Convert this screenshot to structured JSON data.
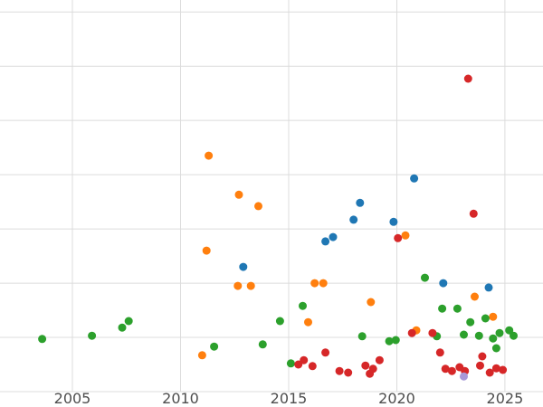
{
  "figure": {
    "background": "#ffffff",
    "grid_color": "#dcdcdc",
    "tick_label_color": "#4d4d4d",
    "tick_font_size": 16
  },
  "chart_data": {
    "type": "scatter",
    "title": "",
    "xlabel": "",
    "ylabel": "",
    "grid": true,
    "legend": "none",
    "marker_radius": 4.5,
    "xlim": [
      2001.65,
      2026.76
    ],
    "ylim": [
      0,
      7.22
    ],
    "x_ticks": [
      2005,
      2010,
      2015,
      2020,
      2025
    ],
    "x_tick_labels": [
      "2005",
      "2010",
      "2015",
      "2020",
      "2025"
    ],
    "y_gridlines": [
      0,
      1,
      2,
      3,
      4,
      5,
      6,
      7
    ],
    "series": [
      {
        "name": "series-blue",
        "color": "#1f77b4",
        "points": [
          [
            2012.9,
            2.3
          ],
          [
            2016.7,
            2.77
          ],
          [
            2017.05,
            2.85
          ],
          [
            2018.0,
            3.17
          ],
          [
            2018.3,
            3.48
          ],
          [
            2019.85,
            3.13
          ],
          [
            2020.8,
            3.93
          ],
          [
            2022.15,
            2.0
          ],
          [
            2024.25,
            1.92
          ]
        ]
      },
      {
        "name": "series-orange",
        "color": "#ff7f0e",
        "points": [
          [
            2011.3,
            4.35
          ],
          [
            2011.2,
            2.6
          ],
          [
            2011.0,
            0.67
          ],
          [
            2012.7,
            3.63
          ],
          [
            2013.6,
            3.42
          ],
          [
            2012.65,
            1.95
          ],
          [
            2013.25,
            1.95
          ],
          [
            2015.9,
            1.28
          ],
          [
            2016.2,
            2.0
          ],
          [
            2016.6,
            2.0
          ],
          [
            2018.8,
            1.65
          ],
          [
            2020.4,
            2.88
          ],
          [
            2020.9,
            1.13
          ],
          [
            2023.6,
            1.75
          ],
          [
            2024.45,
            1.38
          ]
        ]
      },
      {
        "name": "series-green",
        "color": "#2ca02c",
        "points": [
          [
            2003.6,
            0.97
          ],
          [
            2005.9,
            1.03
          ],
          [
            2007.3,
            1.18
          ],
          [
            2007.6,
            1.3
          ],
          [
            2011.55,
            0.83
          ],
          [
            2013.8,
            0.87
          ],
          [
            2014.6,
            1.3
          ],
          [
            2015.1,
            0.52
          ],
          [
            2015.65,
            1.58
          ],
          [
            2018.4,
            1.02
          ],
          [
            2019.65,
            0.93
          ],
          [
            2019.95,
            0.95
          ],
          [
            2021.3,
            2.1
          ],
          [
            2021.85,
            1.02
          ],
          [
            2022.1,
            1.53
          ],
          [
            2022.8,
            1.53
          ],
          [
            2023.1,
            1.05
          ],
          [
            2023.4,
            1.28
          ],
          [
            2023.8,
            1.03
          ],
          [
            2024.1,
            1.35
          ],
          [
            2024.45,
            0.98
          ],
          [
            2024.6,
            0.8
          ],
          [
            2024.75,
            1.08
          ],
          [
            2025.2,
            1.13
          ],
          [
            2025.4,
            1.03
          ]
        ]
      },
      {
        "name": "series-red",
        "color": "#d62728",
        "points": [
          [
            2023.3,
            5.77
          ],
          [
            2023.55,
            3.28
          ],
          [
            2020.05,
            2.83
          ],
          [
            2015.45,
            0.5
          ],
          [
            2015.7,
            0.58
          ],
          [
            2016.1,
            0.47
          ],
          [
            2016.7,
            0.72
          ],
          [
            2017.35,
            0.38
          ],
          [
            2017.75,
            0.35
          ],
          [
            2018.55,
            0.48
          ],
          [
            2018.75,
            0.33
          ],
          [
            2018.9,
            0.42
          ],
          [
            2019.2,
            0.58
          ],
          [
            2020.7,
            1.08
          ],
          [
            2021.65,
            1.08
          ],
          [
            2022.0,
            0.72
          ],
          [
            2022.25,
            0.42
          ],
          [
            2022.55,
            0.38
          ],
          [
            2022.9,
            0.45
          ],
          [
            2023.15,
            0.38
          ],
          [
            2023.85,
            0.48
          ],
          [
            2023.95,
            0.65
          ],
          [
            2024.3,
            0.35
          ],
          [
            2024.6,
            0.43
          ],
          [
            2024.9,
            0.4
          ]
        ]
      },
      {
        "name": "series-purple",
        "color": "#a898d8",
        "points": [
          [
            2023.1,
            0.28
          ]
        ]
      }
    ]
  }
}
